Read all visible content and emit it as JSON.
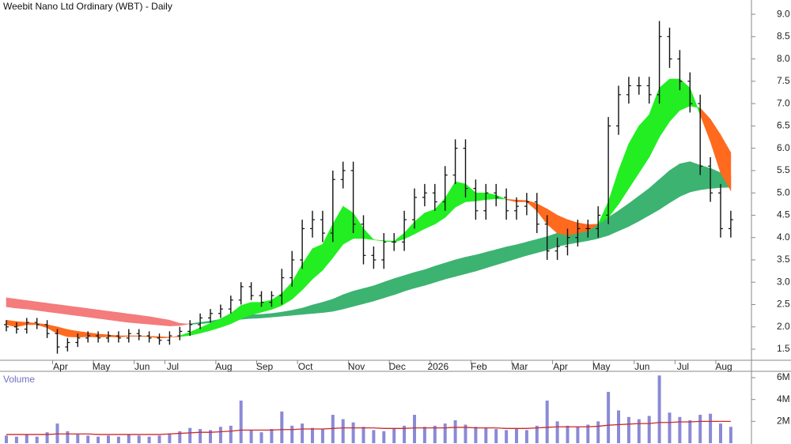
{
  "chart_data": {
    "type": "ohlc",
    "title": "Weebit Nano Ltd Ordinary (WBT) - Daily",
    "volume_title": "Volume",
    "categories": [
      null,
      null,
      null,
      null,
      null,
      "Apr",
      null,
      null,
      null,
      "May",
      null,
      null,
      null,
      "Jun",
      null,
      null,
      "Jul",
      null,
      null,
      null,
      null,
      "Aug",
      null,
      null,
      null,
      "Sep",
      null,
      null,
      null,
      "Oct",
      null,
      null,
      null,
      null,
      "Nov",
      null,
      null,
      null,
      "Dec",
      null,
      null,
      null,
      "2026",
      null,
      null,
      null,
      "Feb",
      null,
      null,
      null,
      "Mar",
      null,
      null,
      null,
      "Apr",
      null,
      null,
      null,
      "May",
      null,
      null,
      null,
      "Jun",
      null,
      null,
      null,
      "Jul",
      null,
      null,
      null,
      "Aug",
      null
    ],
    "open": [
      2.05,
      2.0,
      1.95,
      2.1,
      2.05,
      1.85,
      1.55,
      1.65,
      1.75,
      1.8,
      1.75,
      1.8,
      1.75,
      1.85,
      1.8,
      1.75,
      1.7,
      1.8,
      1.9,
      2.05,
      2.2,
      2.3,
      2.4,
      2.6,
      2.9,
      2.7,
      2.55,
      2.7,
      3.1,
      3.5,
      4.2,
      4.4,
      4.1,
      5.3,
      5.5,
      4.3,
      3.6,
      3.5,
      3.9,
      3.9,
      4.4,
      4.9,
      5.0,
      4.8,
      5.4,
      6.0,
      5.1,
      4.6,
      5.0,
      4.9,
      4.6,
      4.7,
      4.8,
      4.3,
      3.7,
      3.8,
      4.0,
      4.2,
      4.2,
      4.5,
      6.5,
      7.2,
      7.4,
      7.4,
      7.2,
      8.5,
      8.0,
      7.5,
      7.0,
      5.6,
      5.0,
      4.2
    ],
    "high": [
      2.15,
      2.1,
      2.2,
      2.2,
      2.15,
      1.95,
      1.75,
      1.85,
      1.9,
      1.9,
      1.9,
      1.9,
      1.95,
      1.95,
      1.9,
      1.85,
      1.9,
      2.0,
      2.15,
      2.3,
      2.4,
      2.5,
      2.7,
      3.0,
      3.0,
      2.8,
      2.8,
      3.3,
      3.7,
      4.4,
      4.6,
      4.6,
      5.5,
      5.7,
      5.7,
      4.5,
      3.8,
      4.1,
      4.1,
      4.6,
      5.1,
      5.2,
      5.2,
      5.6,
      6.2,
      6.2,
      5.3,
      5.2,
      5.2,
      5.1,
      4.9,
      5.0,
      5.0,
      4.5,
      4.0,
      4.2,
      4.4,
      4.4,
      4.7,
      6.7,
      7.4,
      7.6,
      7.6,
      7.6,
      8.85,
      8.7,
      8.2,
      7.7,
      7.2,
      5.8,
      5.2,
      4.6
    ],
    "low": [
      1.9,
      1.85,
      1.85,
      1.95,
      1.75,
      1.4,
      1.45,
      1.55,
      1.65,
      1.65,
      1.65,
      1.65,
      1.65,
      1.7,
      1.65,
      1.6,
      1.6,
      1.7,
      1.8,
      1.95,
      2.1,
      2.2,
      2.3,
      2.5,
      2.6,
      2.45,
      2.45,
      2.5,
      2.9,
      3.3,
      4.0,
      3.9,
      3.9,
      5.1,
      4.1,
      3.4,
      3.3,
      3.3,
      3.7,
      3.7,
      4.2,
      4.7,
      4.6,
      4.6,
      5.2,
      4.9,
      4.4,
      4.4,
      4.7,
      4.4,
      4.4,
      4.5,
      4.1,
      3.5,
      3.5,
      3.6,
      3.8,
      4.0,
      4.0,
      4.3,
      6.3,
      7.0,
      7.2,
      7.0,
      7.0,
      7.8,
      7.3,
      6.8,
      5.4,
      4.8,
      4.0,
      4.0
    ],
    "close": [
      2.0,
      1.95,
      2.1,
      2.05,
      1.85,
      1.55,
      1.65,
      1.75,
      1.8,
      1.75,
      1.8,
      1.75,
      1.85,
      1.8,
      1.75,
      1.7,
      1.8,
      1.9,
      2.05,
      2.2,
      2.3,
      2.4,
      2.6,
      2.9,
      2.7,
      2.55,
      2.7,
      3.1,
      3.5,
      4.2,
      4.4,
      4.1,
      5.3,
      5.5,
      4.3,
      3.6,
      3.5,
      3.9,
      3.9,
      4.4,
      4.9,
      5.0,
      4.8,
      5.4,
      6.0,
      5.1,
      4.6,
      5.0,
      4.9,
      4.6,
      4.7,
      4.8,
      4.3,
      3.7,
      3.8,
      4.0,
      4.2,
      4.2,
      4.5,
      6.5,
      7.2,
      7.4,
      7.4,
      7.2,
      8.5,
      8.0,
      7.5,
      7.0,
      5.6,
      5.0,
      4.2,
      4.4
    ],
    "bar_color": "#111111",
    "ribbons": [
      {
        "fast": [
          2.45,
          2.42,
          2.4,
          2.37,
          2.34,
          2.31,
          2.28,
          2.25,
          2.22,
          2.19,
          2.16,
          2.13,
          2.1,
          2.08,
          2.06,
          2.04,
          2.02,
          2.03,
          2.07,
          2.1,
          2.13,
          2.17,
          2.21,
          2.25,
          2.27,
          2.28,
          2.3,
          2.33,
          2.37,
          2.42,
          2.49,
          2.55,
          2.62,
          2.72,
          2.8,
          2.86,
          2.92,
          3.0,
          3.08,
          3.15,
          3.22,
          3.28,
          3.36,
          3.43,
          3.5,
          3.56,
          3.61,
          3.67,
          3.73,
          3.79,
          3.84,
          3.9,
          3.96,
          4.02,
          4.1,
          4.15,
          4.19,
          4.23,
          4.3,
          4.45,
          4.6,
          4.76,
          4.93,
          5.1,
          5.3,
          5.5,
          5.65,
          5.7,
          5.62,
          5.55,
          5.45,
          5.38
        ],
        "slow": [
          2.65,
          2.62,
          2.59,
          2.56,
          2.53,
          2.5,
          2.47,
          2.44,
          2.41,
          2.38,
          2.35,
          2.32,
          2.29,
          2.26,
          2.23,
          2.19,
          2.15,
          2.08,
          2.06,
          2.07,
          2.09,
          2.11,
          2.14,
          2.17,
          2.19,
          2.2,
          2.22,
          2.24,
          2.26,
          2.28,
          2.3,
          2.32,
          2.35,
          2.4,
          2.46,
          2.52,
          2.58,
          2.65,
          2.72,
          2.8,
          2.87,
          2.93,
          3.0,
          3.07,
          3.13,
          3.19,
          3.25,
          3.32,
          3.39,
          3.46,
          3.53,
          3.6,
          3.66,
          3.72,
          3.8,
          3.85,
          3.89,
          3.93,
          3.98,
          4.05,
          4.15,
          4.25,
          4.37,
          4.5,
          4.63,
          4.78,
          4.92,
          5.02,
          5.07,
          5.1,
          5.12,
          5.13
        ],
        "up_color": "#3cb371",
        "down_color": "#f47c7c"
      },
      {
        "fast": [
          2.05,
          2.0,
          2.05,
          2.05,
          1.98,
          1.85,
          1.78,
          1.77,
          1.78,
          1.77,
          1.78,
          1.77,
          1.79,
          1.79,
          1.78,
          1.75,
          1.76,
          1.8,
          1.88,
          1.98,
          2.08,
          2.18,
          2.3,
          2.48,
          2.55,
          2.55,
          2.6,
          2.75,
          3.0,
          3.4,
          3.75,
          3.85,
          4.3,
          4.7,
          4.55,
          4.2,
          3.95,
          3.93,
          3.92,
          4.1,
          4.35,
          4.55,
          4.63,
          4.88,
          5.25,
          5.2,
          5.0,
          5.0,
          4.95,
          4.85,
          4.8,
          4.8,
          4.6,
          4.3,
          4.1,
          4.05,
          4.1,
          4.15,
          4.3,
          4.8,
          5.5,
          6.1,
          6.5,
          6.75,
          7.35,
          7.55,
          7.55,
          7.35,
          6.75,
          6.15,
          5.45,
          5.05
        ],
        "slow": [
          2.15,
          2.12,
          2.1,
          2.08,
          2.05,
          2.0,
          1.94,
          1.9,
          1.87,
          1.84,
          1.82,
          1.8,
          1.8,
          1.8,
          1.79,
          1.78,
          1.77,
          1.78,
          1.81,
          1.86,
          1.92,
          1.99,
          2.07,
          2.18,
          2.27,
          2.33,
          2.39,
          2.48,
          2.62,
          2.83,
          3.07,
          3.27,
          3.55,
          3.85,
          3.98,
          3.98,
          3.95,
          3.92,
          3.9,
          3.97,
          4.08,
          4.2,
          4.3,
          4.45,
          4.68,
          4.8,
          4.82,
          4.85,
          4.87,
          4.86,
          4.84,
          4.83,
          4.76,
          4.64,
          4.5,
          4.4,
          4.33,
          4.29,
          4.3,
          4.45,
          4.75,
          5.1,
          5.45,
          5.8,
          6.25,
          6.6,
          6.85,
          6.95,
          6.9,
          6.65,
          6.3,
          5.9
        ],
        "up_color": "#22ee22",
        "down_color": "#ff6a1f"
      }
    ],
    "volume": [
      700000,
      600000,
      800000,
      600000,
      1000000,
      1800000,
      1100000,
      800000,
      700000,
      600000,
      700000,
      600000,
      800000,
      700000,
      600000,
      700000,
      900000,
      1100000,
      1400000,
      1300000,
      1200000,
      1500000,
      1600000,
      3900000,
      1200000,
      1000000,
      1300000,
      2900000,
      1600000,
      1800000,
      1400000,
      1300000,
      2600000,
      2200000,
      1900000,
      1500000,
      1200000,
      1100000,
      1300000,
      1600000,
      2600000,
      1500000,
      1600000,
      1800000,
      2100000,
      1700000,
      1500000,
      1400000,
      1300000,
      1200000,
      1300000,
      1200000,
      1600000,
      3900000,
      2000000,
      1600000,
      1500000,
      1700000,
      2000000,
      4700000,
      3000000,
      2400000,
      2200000,
      2500000,
      6200000,
      2800000,
      2400000,
      2100000,
      2600000,
      2700000,
      1800000,
      1500000
    ],
    "volume_avg": [
      800000,
      800000,
      800000,
      800000,
      800000,
      850000,
      850000,
      850000,
      850000,
      800000,
      800000,
      800000,
      800000,
      800000,
      800000,
      800000,
      850000,
      900000,
      950000,
      1000000,
      1000000,
      1050000,
      1100000,
      1200000,
      1200000,
      1200000,
      1200000,
      1250000,
      1250000,
      1300000,
      1300000,
      1300000,
      1350000,
      1400000,
      1400000,
      1400000,
      1400000,
      1350000,
      1350000,
      1350000,
      1400000,
      1400000,
      1400000,
      1400000,
      1450000,
      1450000,
      1400000,
      1400000,
      1400000,
      1350000,
      1350000,
      1350000,
      1400000,
      1450000,
      1500000,
      1500000,
      1500000,
      1500000,
      1550000,
      1650000,
      1700000,
      1750000,
      1800000,
      1800000,
      1900000,
      1900000,
      1950000,
      1950000,
      2000000,
      2000000,
      2000000,
      2000000
    ],
    "volume_color": "#8a8ad6",
    "volume_avg_color": "#cc2a2a",
    "ylim": [
      1.27,
      9.32
    ],
    "yticks": [
      1.5,
      {
        "value": 2,
        "label": "2.0"
      },
      2.5,
      {
        "value": 3,
        "label": "3.0"
      },
      3.5,
      {
        "value": 4,
        "label": "4.0"
      },
      4.5,
      {
        "value": 5,
        "label": "5.0"
      },
      5.5,
      {
        "value": 6,
        "label": "6.0"
      },
      6.5,
      {
        "value": 7,
        "label": "7.0"
      },
      7.5,
      {
        "value": 8,
        "label": "8.0"
      },
      8.5,
      {
        "value": 9,
        "label": "9.0"
      }
    ],
    "y2lim": [
      0,
      6580000
    ],
    "y2ticks": [
      {
        "value": 2000000,
        "label": "2M"
      },
      {
        "value": 4000000,
        "label": "4M"
      },
      {
        "value": 6000000,
        "label": "6M"
      }
    ]
  }
}
